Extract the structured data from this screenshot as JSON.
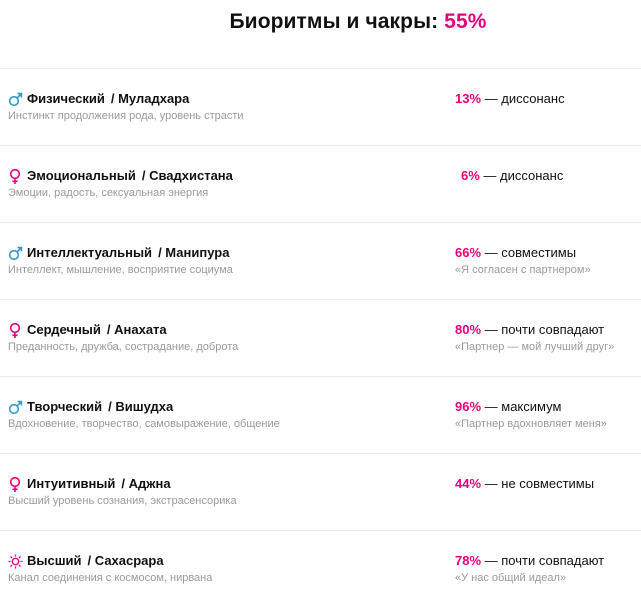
{
  "header": {
    "title": "Биоритмы и чакры:",
    "total_percent": "55%"
  },
  "colors": {
    "accent": "#e6007e",
    "male": "#3399cc",
    "female": "#e6007e",
    "muted": "#9a9a9a"
  },
  "rows": [
    {
      "icon": "male-icon",
      "name": "Физический",
      "chakra": "/ Муладхара",
      "description": "Инстинкт продолжения рода, уровень страсти",
      "percent": "13%",
      "status": "— диссонанс",
      "quote": ""
    },
    {
      "icon": "female-icon",
      "name": "Эмоциональный",
      "chakra": "/ Свадхистана",
      "description": "Эмоции, радость, сексуальная энергия",
      "percent": "6%",
      "status": "— диссонанс",
      "quote": ""
    },
    {
      "icon": "male-icon",
      "name": "Интеллектуальный",
      "chakra": "/ Манипура",
      "description": "Интеллект, мышление, восприятие социума",
      "percent": "66%",
      "status": "— совместимы",
      "quote": "«Я согласен с партнером»"
    },
    {
      "icon": "female-icon",
      "name": "Сердечный",
      "chakra": "/ Анахата",
      "description": "Преданность, дружба, сострадание, доброта",
      "percent": "80%",
      "status": "— почти совпадают",
      "quote": "«Партнер — мой лучший друг»"
    },
    {
      "icon": "male-icon",
      "name": "Творческий",
      "chakra": "/ Вишудха",
      "description": "Вдохновение, творчество, самовыражение, общение",
      "percent": "96%",
      "status": "— максимум",
      "quote": "«Партнер вдохновляет меня»"
    },
    {
      "icon": "female-icon",
      "name": "Интуитивный",
      "chakra": "/ Аджна",
      "description": "Высший уровень сознания, экстрасенсорика",
      "percent": "44%",
      "status": "— не совместимы",
      "quote": ""
    },
    {
      "icon": "sun-icon",
      "name": "Высший",
      "chakra": "/ Сахасрара",
      "description": "Канал соединения с космосом, нирвана",
      "percent": "78%",
      "status": "— почти совпадают",
      "quote": "«У нас общий идеал»"
    }
  ]
}
